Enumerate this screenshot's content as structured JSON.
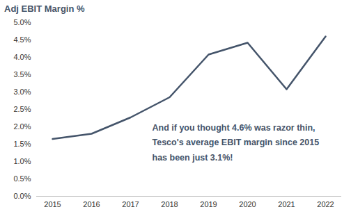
{
  "chart_data": {
    "type": "line",
    "title": "Adj EBIT Margin %",
    "categories": [
      "2015",
      "2016",
      "2017",
      "2018",
      "2019",
      "2020",
      "2021",
      "2022"
    ],
    "values": [
      1.65,
      1.8,
      2.27,
      2.85,
      4.08,
      4.42,
      3.08,
      4.6
    ],
    "color": "#44546a",
    "ylim": [
      0,
      5
    ],
    "yticks": [
      {
        "value": 0,
        "label": "0.0%"
      },
      {
        "value": 0.5,
        "label": "0.5%"
      },
      {
        "value": 1,
        "label": "1.0%"
      },
      {
        "value": 1.5,
        "label": "1.5%"
      },
      {
        "value": 2,
        "label": "2.0%"
      },
      {
        "value": 2.5,
        "label": "2.5%"
      },
      {
        "value": 3,
        "label": "3.0%"
      },
      {
        "value": 3.5,
        "label": "3.5%"
      },
      {
        "value": 4,
        "label": "4.0%"
      },
      {
        "value": 4.5,
        "label": "4.5%"
      },
      {
        "value": 5,
        "label": "5.0%"
      }
    ],
    "grid": false,
    "annotation": [
      "And if you thought 4.6% was razor thin,",
      "Tesco's average EBIT margin since 2015",
      "has been just 3.1%!"
    ]
  }
}
